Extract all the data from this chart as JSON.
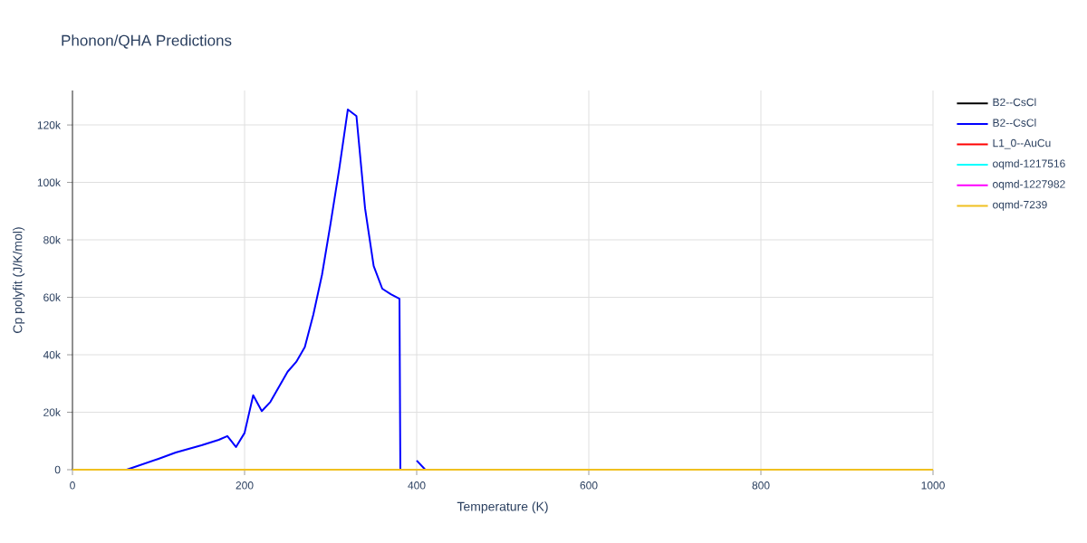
{
  "chart_data": {
    "type": "line",
    "title": "Phonon/QHA Predictions",
    "xlabel": "Temperature (K)",
    "ylabel": "Cp polyfit (J/K/mol)",
    "xlim": [
      0,
      1000
    ],
    "xticks": [
      0,
      200,
      400,
      600,
      800,
      1000
    ],
    "ylim": [
      0,
      132000
    ],
    "yticks": [
      0,
      {
        "value": 20000,
        "label": "20k"
      },
      {
        "value": 40000,
        "label": "40k"
      },
      {
        "value": 60000,
        "label": "60k"
      },
      {
        "value": 80000,
        "label": "80k"
      },
      {
        "value": 100000,
        "label": "100k"
      },
      {
        "value": 120000,
        "label": "120k"
      }
    ],
    "grid": true,
    "legend": "top right",
    "series": [
      {
        "name": "B2--CsCl",
        "color": "#000000"
      },
      {
        "name": "B2--CsCl",
        "color": "#0000ff",
        "x": [
          63,
          100,
          120,
          150,
          170,
          180,
          190,
          200,
          210,
          220,
          230,
          250,
          260,
          270,
          280,
          290,
          300,
          310,
          320,
          330,
          340,
          350,
          360,
          370,
          380,
          381,
          390,
          400,
          410
        ],
        "values": [
          0,
          3800,
          6000,
          8500,
          10400,
          11700,
          7900,
          12800,
          25900,
          20400,
          23600,
          34100,
          37500,
          42700,
          54100,
          67900,
          85800,
          104700,
          125400,
          123100,
          91000,
          70900,
          63000,
          61100,
          59500,
          0,
          null,
          3200,
          0
        ]
      },
      {
        "name": "L1_0--AuCu",
        "color": "#ff0000"
      },
      {
        "name": "oqmd-1217516",
        "color": "#00ffff"
      },
      {
        "name": "oqmd-1227982",
        "color": "#ff00ff"
      },
      {
        "name": "oqmd-7239",
        "color": "#f0c020",
        "x": [
          0,
          1000
        ],
        "values": [
          0,
          0
        ]
      }
    ]
  }
}
